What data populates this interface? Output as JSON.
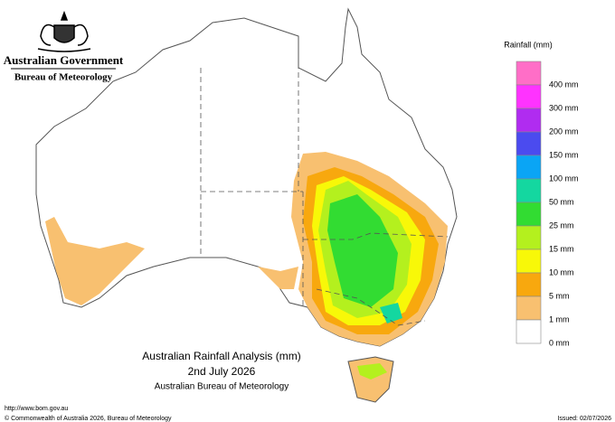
{
  "header": {
    "government": "Australian Government",
    "agency": "Bureau of Meteorology"
  },
  "legend": {
    "title": "Rainfall (mm)",
    "items": [
      {
        "color": "#ff6ec7",
        "label": "400 mm"
      },
      {
        "color": "#ff33ff",
        "label": "300 mm"
      },
      {
        "color": "#b02cf0",
        "label": "200 mm"
      },
      {
        "color": "#4b4bef",
        "label": "150 mm"
      },
      {
        "color": "#0aa5f5",
        "label": "100 mm"
      },
      {
        "color": "#14d7a0",
        "label": "50 mm"
      },
      {
        "color": "#32dc32",
        "label": "25 mm"
      },
      {
        "color": "#b4f01e",
        "label": "15 mm"
      },
      {
        "color": "#f8f808",
        "label": "10 mm"
      },
      {
        "color": "#f8a80e",
        "label": "5 mm"
      },
      {
        "color": "#f8c070",
        "label": "1 mm"
      },
      {
        "color": "#ffffff",
        "label": "0 mm"
      }
    ]
  },
  "map_title": {
    "title": "Australian Rainfall Analysis (mm)",
    "date": "2nd July 2026",
    "source": "Australian Bureau of Meteorology"
  },
  "footer": {
    "url": "http://www.bom.gov.au",
    "copyright": "© Commonwealth of Australia 2026, Bureau of Meteorology",
    "issued": "Issued: 02/07/2026"
  }
}
